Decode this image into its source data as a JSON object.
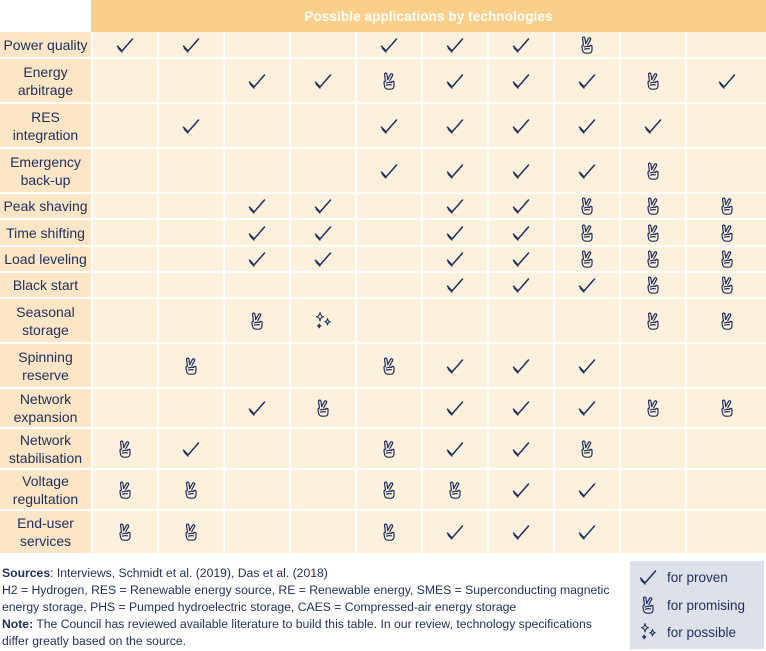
{
  "header": {
    "title": "Possible applications by technologies"
  },
  "rows": [
    {
      "label": "Power quality",
      "cells": [
        "proven",
        "proven",
        "",
        "",
        "proven",
        "proven",
        "proven",
        "promising",
        "",
        ""
      ]
    },
    {
      "label": "Energy arbitrage",
      "cells": [
        "",
        "",
        "proven",
        "proven",
        "promising",
        "proven",
        "proven",
        "proven",
        "promising",
        "proven"
      ]
    },
    {
      "label": "RES integration",
      "cells": [
        "",
        "proven",
        "",
        "",
        "proven",
        "proven",
        "proven",
        "proven",
        "proven",
        ""
      ]
    },
    {
      "label": "Emergency back-up",
      "cells": [
        "",
        "",
        "",
        "",
        "proven",
        "proven",
        "proven",
        "proven",
        "promising",
        ""
      ]
    },
    {
      "label": "Peak shaving",
      "cells": [
        "",
        "",
        "proven",
        "proven",
        "",
        "proven",
        "proven",
        "promising",
        "promising",
        "promising"
      ]
    },
    {
      "label": "Time shifting",
      "cells": [
        "",
        "",
        "proven",
        "proven",
        "",
        "proven",
        "proven",
        "promising",
        "promising",
        "promising"
      ]
    },
    {
      "label": "Load leveling",
      "cells": [
        "",
        "",
        "proven",
        "proven",
        "",
        "proven",
        "proven",
        "promising",
        "promising",
        "promising"
      ]
    },
    {
      "label": "Black start",
      "cells": [
        "",
        "",
        "",
        "",
        "",
        "proven",
        "proven",
        "proven",
        "promising",
        "promising"
      ]
    },
    {
      "label": "Seasonal storage",
      "cells": [
        "",
        "",
        "promising",
        "possible",
        "",
        "",
        "",
        "",
        "promising",
        "promising"
      ]
    },
    {
      "label": "Spinning reserve",
      "cells": [
        "",
        "promising",
        "",
        "",
        "promising",
        "proven",
        "proven",
        "proven",
        "",
        ""
      ]
    },
    {
      "label": "Network expansion",
      "cells": [
        "",
        "",
        "proven",
        "promising",
        "",
        "proven",
        "proven",
        "proven",
        "promising",
        "promising"
      ]
    },
    {
      "label": "Network stabilisation",
      "cells": [
        "promising",
        "proven",
        "",
        "",
        "promising",
        "proven",
        "proven",
        "promising",
        "",
        ""
      ]
    },
    {
      "label": "Voltage regultation",
      "cells": [
        "promising",
        "promising",
        "",
        "",
        "promising",
        "promising",
        "proven",
        "proven",
        "",
        ""
      ]
    },
    {
      "label": "End-user services",
      "cells": [
        "promising",
        "promising",
        "",
        "",
        "promising",
        "proven",
        "proven",
        "proven",
        "",
        ""
      ]
    }
  ],
  "footer": {
    "sources_label": "Sources",
    "sources_text": ": Interviews, Schmidt et al. (2019), Das et al. (2018)",
    "abbreviations": "H2 = Hydrogen, RES = Renewable energy source, RE = Renewable energy, SMES = Superconducting magnetic energy storage, PHS = Pumped hydroelectric storage, CAES = Compressed-air energy storage",
    "note_label": "Note:",
    "note_text": " The Council has reviewed available literature to build this table. In our review, technology specifications differ greatly based on the source."
  },
  "legend": {
    "items": [
      {
        "icon": "proven",
        "label": "for proven"
      },
      {
        "icon": "promising",
        "label": "for promising"
      },
      {
        "icon": "possible",
        "label": "for possible"
      }
    ]
  },
  "colors": {
    "header": "#f9cf8a",
    "label_bg": "#fce6c6",
    "cell_bg": "#fdf1de",
    "text": "#1f2f5c",
    "legend_bg": "#dde2ea"
  }
}
